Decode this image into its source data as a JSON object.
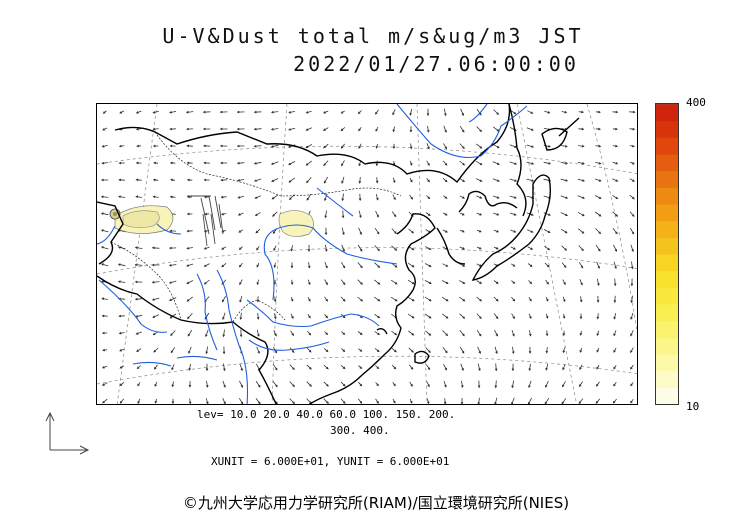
{
  "title": {
    "line1": "U-V&Dust total m/s&ug/m3 JST",
    "line2": "2022/01/27.06:00:00"
  },
  "colorbar": {
    "max_label": "400",
    "min_label": "10",
    "colors": [
      "#fefee8",
      "#fdfcc8",
      "#fcf9a8",
      "#fbf68a",
      "#faf36d",
      "#f9ef52",
      "#f8e93c",
      "#f8e22e",
      "#f6d523",
      "#f5c41c",
      "#f4b218",
      "#f19e15",
      "#ee8913",
      "#ea7311",
      "#e55d0f",
      "#df470d",
      "#d8340c",
      "#d0240b"
    ]
  },
  "legend": {
    "levels_line1": "lev= 10.0 20.0 40.0 60.0 100. 150. 200.",
    "levels_line2": "300. 400.",
    "units": "XUNIT = 6.000E+01, YUNIT = 6.000E+01"
  },
  "footer": {
    "copyright": "©九州大学応用力学研究所(RIAM)/国立環境研究所(NIES)"
  },
  "map_colors": {
    "coast": "#000000",
    "river": "#1f5fe0",
    "dust_light": "#f8f3b8",
    "dust_mid": "#d8cf8a",
    "grid": "#888888",
    "vector": "#333333"
  }
}
